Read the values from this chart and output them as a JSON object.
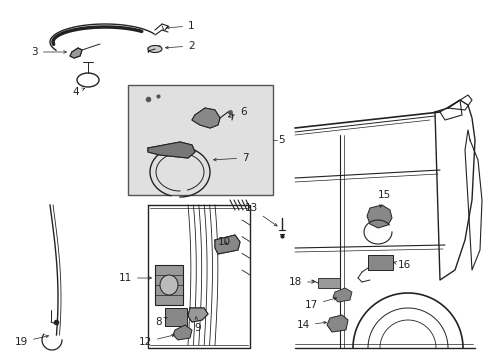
{
  "bg_color": "#ffffff",
  "line_color": "#222222",
  "gray_color": "#888888",
  "light_gray": "#d8d8d8",
  "font_size": 7.5
}
